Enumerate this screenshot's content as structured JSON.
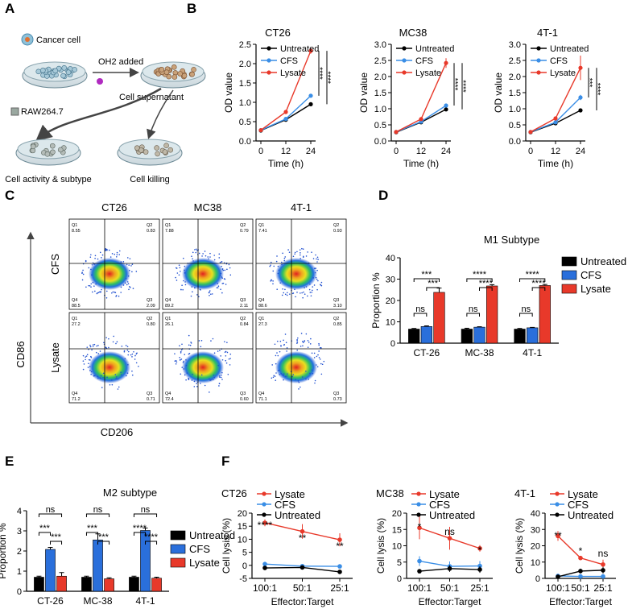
{
  "panels": {
    "A": {
      "label": "A",
      "cancer_cell": "Cancer cell",
      "oh2_added": "OH2 added",
      "cell_supernatant": "Cell supernatant",
      "raw": "RAW264.7",
      "cell_activity": "Cell activity & subtype",
      "cell_killing": "Cell killing"
    },
    "B": {
      "label": "B"
    },
    "C": {
      "label": "C",
      "columns": [
        "CT26",
        "MC38",
        "4T-1"
      ],
      "rows": [
        "CFS",
        "Lysate"
      ],
      "yaxis": "CD86",
      "xaxis": "CD206",
      "quadrants": [
        [
          "Q1",
          "8.55",
          "Q2",
          "0.83",
          "Q4",
          "88.5",
          "Q3",
          "2.09"
        ],
        [
          "Q1",
          "7.88",
          "Q2",
          "0.79",
          "Q4",
          "89.2",
          "Q3",
          "2.11"
        ],
        [
          "Q1",
          "7.41",
          "Q2",
          "0.93",
          "Q4",
          "88.6",
          "Q3",
          "3.10"
        ],
        [
          "Q1",
          "27.2",
          "Q2",
          "0.80",
          "Q4",
          "71.2",
          "Q3",
          "0.71"
        ],
        [
          "Q1",
          "26.1",
          "Q2",
          "0.84",
          "Q4",
          "72.4",
          "Q3",
          "0.60"
        ],
        [
          "Q1",
          "27.3",
          "Q2",
          "0.85",
          "Q4",
          "71.1",
          "Q3",
          "0.73"
        ]
      ]
    },
    "D": {
      "label": "D"
    },
    "E": {
      "label": "E"
    },
    "F": {
      "label": "F"
    }
  },
  "colors": {
    "untreated": "#000000",
    "cfs": "#2a6fdb",
    "lysate": "#e8392a",
    "cfs_line": "#3a8ee6"
  },
  "chart_data": [
    {
      "id": "B1",
      "type": "line",
      "title": "CT26",
      "xlabel": "Time (h)",
      "ylabel": "OD value",
      "x": [
        0,
        12,
        24
      ],
      "xticks": [
        "0",
        "12",
        "24"
      ],
      "ylim": [
        0,
        2.5
      ],
      "yticks": [
        "0.0",
        "0.5",
        "1.0",
        "1.5",
        "2.0",
        "2.5"
      ],
      "series": [
        {
          "name": "Untreated",
          "values": [
            0.27,
            0.55,
            0.95
          ],
          "err": [
            0.01,
            0.01,
            0.02
          ]
        },
        {
          "name": "CFS",
          "values": [
            0.28,
            0.57,
            1.17
          ],
          "err": [
            0.01,
            0.01,
            0.02
          ]
        },
        {
          "name": "Lysate",
          "values": [
            0.28,
            0.75,
            2.33
          ],
          "err": [
            0.01,
            0.01,
            0.07
          ]
        }
      ],
      "significance": [
        "****",
        "****"
      ]
    },
    {
      "id": "B2",
      "type": "line",
      "title": "MC38",
      "xlabel": "Time (h)",
      "ylabel": "OD value",
      "x": [
        0,
        12,
        24
      ],
      "xticks": [
        "0",
        "12",
        "24"
      ],
      "ylim": [
        0,
        3.0
      ],
      "yticks": [
        "0.0",
        "0.5",
        "1.0",
        "1.5",
        "2.0",
        "2.5",
        "3.0"
      ],
      "series": [
        {
          "name": "Untreated",
          "values": [
            0.27,
            0.58,
            0.98
          ],
          "err": [
            0.01,
            0.01,
            0.02
          ]
        },
        {
          "name": "CFS",
          "values": [
            0.28,
            0.6,
            1.1
          ],
          "err": [
            0.01,
            0.01,
            0.06
          ]
        },
        {
          "name": "Lysate",
          "values": [
            0.28,
            0.68,
            2.42
          ],
          "err": [
            0.01,
            0.01,
            0.15
          ]
        }
      ],
      "significance": [
        "****",
        "****"
      ]
    },
    {
      "id": "B3",
      "type": "line",
      "title": "4T-1",
      "xlabel": "Time (h)",
      "ylabel": "OD value",
      "x": [
        0,
        12,
        24
      ],
      "xticks": [
        "0",
        "12",
        "24"
      ],
      "ylim": [
        0,
        3.0
      ],
      "yticks": [
        "0.0",
        "0.5",
        "1.0",
        "1.5",
        "2.0",
        "2.5",
        "3.0"
      ],
      "series": [
        {
          "name": "Untreated",
          "values": [
            0.27,
            0.55,
            0.95
          ],
          "err": [
            0.01,
            0.01,
            0.02
          ]
        },
        {
          "name": "CFS",
          "values": [
            0.28,
            0.58,
            1.35
          ],
          "err": [
            0.01,
            0.01,
            0.08
          ]
        },
        {
          "name": "Lysate",
          "values": [
            0.28,
            0.7,
            2.27
          ],
          "err": [
            0.01,
            0.01,
            0.38
          ]
        }
      ],
      "significance": [
        "***",
        "****"
      ]
    },
    {
      "id": "D",
      "type": "bar",
      "title": "M1 Subtype",
      "ylabel": "Proportion %",
      "ylim": [
        0,
        40
      ],
      "yticks": [
        "0",
        "10",
        "20",
        "30",
        "40"
      ],
      "categories": [
        "CT-26",
        "MC-38",
        "4T-1"
      ],
      "series": [
        {
          "name": "Untreated",
          "values": [
            6.6,
            6.6,
            6.6
          ],
          "err": [
            0.3,
            0.4,
            0.3
          ]
        },
        {
          "name": "CFS",
          "values": [
            7.8,
            7.5,
            7.2
          ],
          "err": [
            0.3,
            0.2,
            0.2
          ]
        },
        {
          "name": "Lysate",
          "values": [
            23.8,
            26.8,
            27.0
          ],
          "err": [
            2.0,
            0.6,
            0.5
          ]
        }
      ],
      "significance": [
        {
          "from": 0,
          "to": 2,
          "group": 0,
          "label": "***"
        },
        {
          "from": 1,
          "to": 2,
          "group": 0,
          "label": "***"
        },
        {
          "from": 0,
          "to": 1,
          "group": 0,
          "label": "ns"
        },
        {
          "from": 0,
          "to": 2,
          "group": 1,
          "label": "****"
        },
        {
          "from": 1,
          "to": 2,
          "group": 1,
          "label": "****"
        },
        {
          "from": 0,
          "to": 1,
          "group": 1,
          "label": "ns"
        },
        {
          "from": 0,
          "to": 2,
          "group": 2,
          "label": "****"
        },
        {
          "from": 1,
          "to": 2,
          "group": 2,
          "label": "****"
        },
        {
          "from": 0,
          "to": 1,
          "group": 2,
          "label": "ns"
        }
      ]
    },
    {
      "id": "E",
      "type": "bar",
      "title": "M2 subtype",
      "ylabel": "Proportion %",
      "ylim": [
        0,
        4
      ],
      "yticks": [
        "0",
        "1",
        "2",
        "3",
        "4"
      ],
      "categories": [
        "CT-26",
        "MC-38",
        "4T-1"
      ],
      "series": [
        {
          "name": "Untreated",
          "values": [
            0.7,
            0.7,
            0.7
          ],
          "err": [
            0.05,
            0.05,
            0.05
          ]
        },
        {
          "name": "CFS",
          "values": [
            2.08,
            2.55,
            3.02
          ],
          "err": [
            0.1,
            0.3,
            0.12
          ]
        },
        {
          "name": "Lysate",
          "values": [
            0.75,
            0.62,
            0.65
          ],
          "err": [
            0.18,
            0.05,
            0.05
          ]
        }
      ],
      "significance": [
        {
          "from": 0,
          "to": 1,
          "group": 0,
          "label": "***"
        },
        {
          "from": 1,
          "to": 2,
          "group": 0,
          "label": "***"
        },
        {
          "from": 0,
          "to": 2,
          "group": 0,
          "label": "ns"
        },
        {
          "from": 0,
          "to": 1,
          "group": 1,
          "label": "***"
        },
        {
          "from": 1,
          "to": 2,
          "group": 1,
          "label": "***"
        },
        {
          "from": 0,
          "to": 2,
          "group": 1,
          "label": "ns"
        },
        {
          "from": 0,
          "to": 1,
          "group": 2,
          "label": "****"
        },
        {
          "from": 1,
          "to": 2,
          "group": 2,
          "label": "****"
        },
        {
          "from": 0,
          "to": 2,
          "group": 2,
          "label": "ns"
        }
      ]
    },
    {
      "id": "F1",
      "type": "line",
      "title": "CT26",
      "xlabel": "Effector:Target",
      "ylabel": "Cell lysis (%)",
      "categories": [
        "100:1",
        "50:1",
        "25:1"
      ],
      "ylim": [
        -5,
        20
      ],
      "yticks": [
        "-5",
        "0",
        "5",
        "10",
        "15",
        "20"
      ],
      "series": [
        {
          "name": "Lysate",
          "values": [
            16.3,
            13.0,
            9.8
          ],
          "err": [
            1.3,
            2.8,
            2.5
          ]
        },
        {
          "name": "CFS",
          "values": [
            0.5,
            -0.3,
            -0.4
          ],
          "err": [
            0.3,
            0.3,
            0.3
          ]
        },
        {
          "name": "Untreated",
          "values": [
            -1.0,
            -0.8,
            -2.5
          ],
          "err": [
            0.3,
            0.3,
            0.5
          ]
        }
      ],
      "significance": [
        "****",
        "**",
        "**"
      ]
    },
    {
      "id": "F2",
      "type": "line",
      "title": "MC38",
      "xlabel": "Effector:Target",
      "ylabel": "Cell lysis (%)",
      "categories": [
        "100:1",
        "50:1",
        "25:1"
      ],
      "ylim": [
        0,
        20
      ],
      "yticks": [
        "0",
        "5",
        "10",
        "15",
        "20"
      ],
      "series": [
        {
          "name": "Lysate",
          "values": [
            15.5,
            12.3,
            9.2
          ],
          "err": [
            3.5,
            3.5,
            1.0
          ]
        },
        {
          "name": "CFS",
          "values": [
            5.3,
            3.7,
            3.8
          ],
          "err": [
            1.5,
            1.5,
            1.5
          ]
        },
        {
          "name": "Untreated",
          "values": [
            2.2,
            3.0,
            2.7
          ],
          "err": [
            0.5,
            1.0,
            1.0
          ]
        }
      ],
      "significance": [
        "*",
        "ns",
        "*"
      ]
    },
    {
      "id": "F3",
      "type": "line",
      "title": "4T-1",
      "xlabel": "Effector:Target",
      "ylabel": "Cell lysis (%)",
      "categories": [
        "100:1",
        "50:1",
        "25:1"
      ],
      "ylim": [
        0,
        40
      ],
      "yticks": [
        "0",
        "10",
        "20",
        "30",
        "40"
      ],
      "series": [
        {
          "name": "Lysate",
          "values": [
            26.0,
            12.5,
            8.5
          ],
          "err": [
            3.0,
            0.5,
            3.0
          ]
        },
        {
          "name": "CFS",
          "values": [
            1.5,
            1.2,
            1.2
          ],
          "err": [
            0.5,
            0.5,
            0.5
          ]
        },
        {
          "name": "Untreated",
          "values": [
            1.0,
            4.5,
            5.0
          ],
          "err": [
            0.5,
            1.5,
            2.0
          ]
        }
      ],
      "significance": [
        "**",
        "*",
        "ns"
      ]
    }
  ]
}
